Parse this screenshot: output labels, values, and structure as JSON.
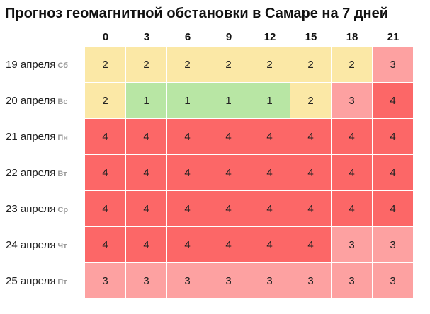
{
  "title": "Прогноз геомагнитной обстановки в Самаре на 7 дней",
  "hours": [
    "0",
    "3",
    "6",
    "9",
    "12",
    "15",
    "18",
    "21"
  ],
  "levels": {
    "1": {
      "color": "#b8e6a4"
    },
    "2": {
      "color": "#fbe8a6"
    },
    "3": {
      "color": "#fda1a1"
    },
    "4": {
      "color": "#fc6767"
    }
  },
  "rows": [
    {
      "date": "19 апреля",
      "dow": "Сб",
      "values": [
        "2",
        "2",
        "2",
        "2",
        "2",
        "2",
        "2",
        "3"
      ]
    },
    {
      "date": "20 апреля",
      "dow": "Вс",
      "values": [
        "2",
        "1",
        "1",
        "1",
        "1",
        "2",
        "3",
        "4"
      ]
    },
    {
      "date": "21 апреля",
      "dow": "Пн",
      "values": [
        "4",
        "4",
        "4",
        "4",
        "4",
        "4",
        "4",
        "4"
      ]
    },
    {
      "date": "22 апреля",
      "dow": "Вт",
      "values": [
        "4",
        "4",
        "4",
        "4",
        "4",
        "4",
        "4",
        "4"
      ]
    },
    {
      "date": "23 апреля",
      "dow": "Ср",
      "values": [
        "4",
        "4",
        "4",
        "4",
        "4",
        "4",
        "4",
        "4"
      ]
    },
    {
      "date": "24 апреля",
      "dow": "Чт",
      "values": [
        "4",
        "4",
        "4",
        "4",
        "4",
        "4",
        "3",
        "3"
      ]
    },
    {
      "date": "25 апреля",
      "dow": "Пт",
      "values": [
        "3",
        "3",
        "3",
        "3",
        "3",
        "3",
        "3",
        "3"
      ]
    }
  ]
}
